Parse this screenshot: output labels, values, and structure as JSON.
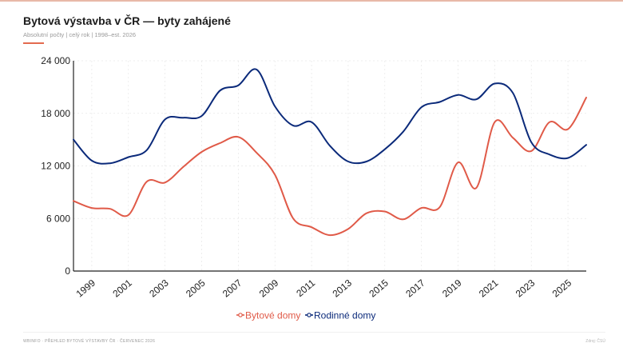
{
  "header": {
    "title": "Bytová výstavba v ČR — byty zahájené",
    "subtitle": "Absolutní počty | celý rok | 1998–est. 2026"
  },
  "footer": {
    "left": "WBINFO · PŘEHLED BYTOVÉ VÝSTAVBY ČR · ČERVENEC 2026",
    "right": "Zdroj: ČSÚ"
  },
  "colors": {
    "bytove": "#e05a48",
    "rodinne": "#0b2a7a",
    "accent": "#e36a4f",
    "axis": "#222222",
    "grid": "#e6e6e6"
  },
  "chart_data": {
    "type": "line",
    "x": [
      1998,
      1999,
      2000,
      2001,
      2002,
      2003,
      2004,
      2005,
      2006,
      2007,
      2008,
      2009,
      2010,
      2011,
      2012,
      2013,
      2014,
      2015,
      2016,
      2017,
      2018,
      2019,
      2020,
      2021,
      2022,
      2023,
      2024,
      2025,
      2026
    ],
    "x_tick_labels": [
      "1999",
      "2001",
      "2003",
      "2005",
      "2007",
      "2009",
      "2011",
      "2013",
      "2015",
      "2017",
      "2019",
      "2021",
      "2023",
      "2025"
    ],
    "y_tick_labels": [
      "0",
      "6 000",
      "12 000",
      "18 000",
      "24 000"
    ],
    "ylim": [
      0,
      24000
    ],
    "xlim": [
      1998,
      2026
    ],
    "grid": true,
    "legend_position": "bottom-center",
    "series": [
      {
        "name": "Bytové domy",
        "color": "#e05a48",
        "values": [
          8000,
          7200,
          7100,
          6400,
          10200,
          10100,
          11900,
          13600,
          14600,
          15300,
          13500,
          11000,
          6000,
          5000,
          4100,
          4800,
          6600,
          6800,
          5900,
          7200,
          7300,
          12400,
          9500,
          17000,
          15200,
          13700,
          17000,
          16200,
          19800
        ]
      },
      {
        "name": "Rodinné domy",
        "color": "#0b2a7a",
        "values": [
          15000,
          12600,
          12300,
          13000,
          13800,
          17300,
          17500,
          17700,
          20600,
          21200,
          23000,
          18800,
          16600,
          17000,
          14300,
          12500,
          12500,
          13900,
          15900,
          18700,
          19300,
          20100,
          19600,
          21400,
          20300,
          14700,
          13300,
          12900,
          14400
        ]
      }
    ]
  }
}
